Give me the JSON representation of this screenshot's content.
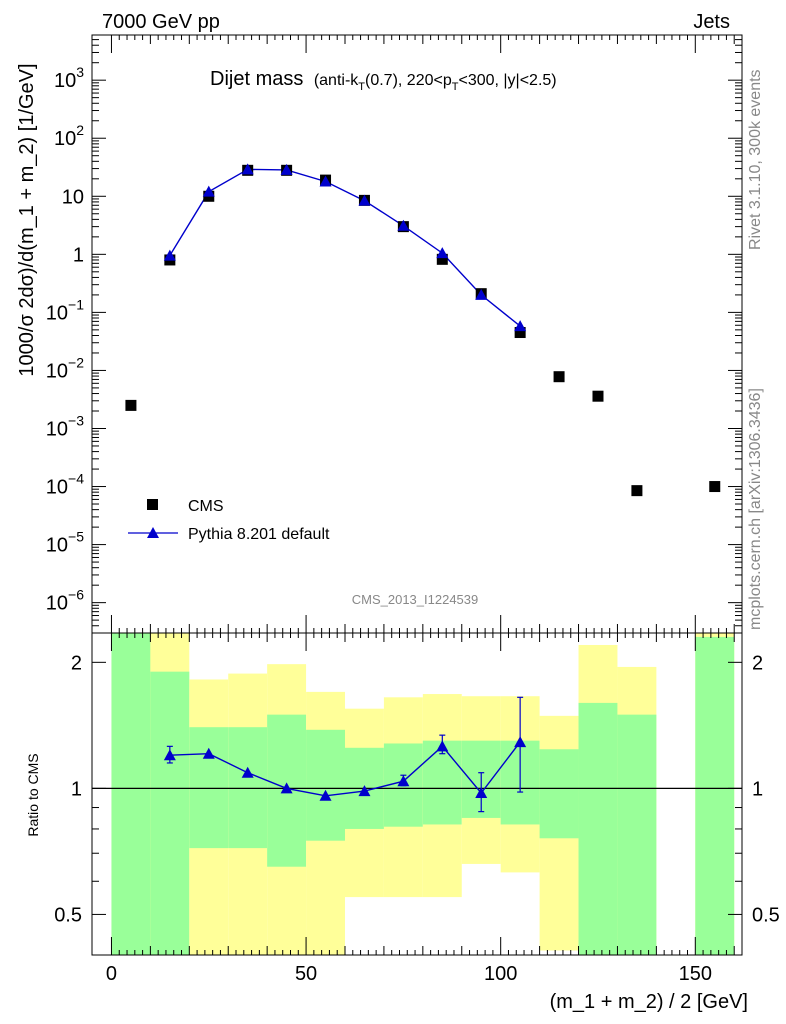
{
  "header": {
    "left": "7000 GeV pp",
    "right": "Jets"
  },
  "side_labels": {
    "rivet": "Rivet 3.1.10,  300k events",
    "mcplots": "mcplots.cern.ch [arXiv:1306.3436]"
  },
  "watermark": "CMS_2013_I1224539",
  "chart_data": [
    {
      "type": "scatter",
      "title": "Dijet mass",
      "subtitle_parts": {
        "open": "(anti-k",
        "sub_T": "T",
        "mid": "(0.7), 220<p",
        "sub_T2": "T",
        "close": "<300, |y|<2.5)"
      },
      "ylabel": "1000/σ 2dσ)/d(m_1 + m_2) [1/GeV]",
      "yscale": "log",
      "ylim": [
        3e-07,
        6000
      ],
      "xlim": [
        -5,
        162
      ],
      "ytick_labels": [
        {
          "v": 1e-06,
          "base": "10",
          "exp": "−6"
        },
        {
          "v": 1e-05,
          "base": "10",
          "exp": "−5"
        },
        {
          "v": 0.0001,
          "base": "10",
          "exp": "−4"
        },
        {
          "v": 0.001,
          "base": "10",
          "exp": "−3"
        },
        {
          "v": 0.01,
          "base": "10",
          "exp": "−2"
        },
        {
          "v": 0.1,
          "base": "10",
          "exp": "−1"
        },
        {
          "v": 1,
          "base": "1",
          "exp": ""
        },
        {
          "v": 10,
          "base": "10",
          "exp": ""
        },
        {
          "v": 100,
          "base": "10",
          "exp": "2"
        },
        {
          "v": 1000,
          "base": "10",
          "exp": "3"
        }
      ],
      "legend": {
        "position": "lower-left",
        "entries": [
          "CMS",
          "Pythia 8.201 default"
        ]
      },
      "series": [
        {
          "name": "CMS",
          "marker": "square",
          "color": "#000000",
          "x": [
            5,
            15,
            25,
            35,
            45,
            55,
            65,
            75,
            85,
            95,
            105,
            115,
            125,
            135,
            155
          ],
          "values": [
            0.0025,
            0.8,
            10.0,
            28.0,
            28.0,
            19.0,
            8.5,
            3.0,
            0.82,
            0.21,
            0.045,
            0.0078,
            0.0036,
            8.5e-05,
            0.0001
          ]
        },
        {
          "name": "Pythia 8.201 default",
          "marker": "triangle",
          "color": "#0000cc",
          "x": [
            15,
            25,
            35,
            45,
            55,
            65,
            75,
            85,
            95,
            105
          ],
          "values": [
            0.95,
            12.0,
            29.0,
            28.5,
            18.0,
            8.4,
            3.1,
            1.05,
            0.2,
            0.058
          ]
        }
      ]
    },
    {
      "type": "scatter",
      "ylabel": "Ratio to CMS",
      "yscale": "log",
      "ylim": [
        0.4,
        2.35
      ],
      "xlim": [
        -5,
        162
      ],
      "xlabel": "(m_1 + m_2) / 2 [GeV]",
      "yticks": [
        0.5,
        1,
        2
      ],
      "ytick_labels": [
        "0.5",
        "1",
        "2"
      ],
      "xticks": [
        0,
        50,
        100,
        150
      ],
      "xtick_labels": [
        "0",
        "50",
        "100",
        "150"
      ],
      "bands": {
        "colors": {
          "inner": "#99ff99",
          "outer": "#ffff99"
        },
        "bins": [
          {
            "x0": 0,
            "x1": 10,
            "g_lo": 0.4,
            "g_hi": 2.35,
            "y_lo": 0.4,
            "y_hi": 2.35
          },
          {
            "x0": 10,
            "x1": 20,
            "g_lo": 0.4,
            "g_hi": 1.9,
            "y_lo": 0.4,
            "y_hi": 2.35
          },
          {
            "x0": 20,
            "x1": 30,
            "g_lo": 0.72,
            "g_hi": 1.4,
            "y_lo": 0.4,
            "y_hi": 1.82
          },
          {
            "x0": 30,
            "x1": 40,
            "g_lo": 0.72,
            "g_hi": 1.4,
            "y_lo": 0.4,
            "y_hi": 1.88
          },
          {
            "x0": 40,
            "x1": 50,
            "g_lo": 0.65,
            "g_hi": 1.5,
            "y_lo": 0.4,
            "y_hi": 1.98
          },
          {
            "x0": 50,
            "x1": 60,
            "g_lo": 0.75,
            "g_hi": 1.38,
            "y_lo": 0.4,
            "y_hi": 1.7
          },
          {
            "x0": 60,
            "x1": 70,
            "g_lo": 0.8,
            "g_hi": 1.25,
            "y_lo": 0.55,
            "y_hi": 1.55
          },
          {
            "x0": 70,
            "x1": 80,
            "g_lo": 0.81,
            "g_hi": 1.28,
            "y_lo": 0.55,
            "y_hi": 1.65
          },
          {
            "x0": 80,
            "x1": 90,
            "g_lo": 0.82,
            "g_hi": 1.3,
            "y_lo": 0.55,
            "y_hi": 1.68
          },
          {
            "x0": 90,
            "x1": 100,
            "g_lo": 0.85,
            "g_hi": 1.3,
            "y_lo": 0.66,
            "y_hi": 1.66
          },
          {
            "x0": 100,
            "x1": 110,
            "g_lo": 0.82,
            "g_hi": 1.3,
            "y_lo": 0.63,
            "y_hi": 1.66
          },
          {
            "x0": 110,
            "x1": 120,
            "g_lo": 0.76,
            "g_hi": 1.24,
            "y_lo": 0.41,
            "y_hi": 1.49
          },
          {
            "x0": 120,
            "x1": 130,
            "g_lo": 0.4,
            "g_hi": 1.6,
            "y_lo": 0.4,
            "y_hi": 2.2
          },
          {
            "x0": 130,
            "x1": 140,
            "g_lo": 0.4,
            "g_hi": 1.5,
            "y_lo": 0.4,
            "y_hi": 1.95
          },
          {
            "x0": 150,
            "x1": 160,
            "g_lo": 0.4,
            "g_hi": 2.3,
            "y_lo": 0.4,
            "y_hi": 2.35
          }
        ]
      },
      "series": [
        {
          "name": "Pythia 8.201 default",
          "marker": "triangle",
          "color": "#0000cc",
          "x": [
            15,
            25,
            35,
            45,
            55,
            65,
            75,
            85,
            95,
            105
          ],
          "values": [
            1.2,
            1.21,
            1.09,
            1.0,
            0.96,
            0.985,
            1.04,
            1.26,
            0.975,
            1.29
          ],
          "err_lo": [
            1.15,
            1.21,
            1.09,
            1.0,
            0.96,
            0.985,
            1.015,
            1.21,
            0.88,
            0.98
          ],
          "err_hi": [
            1.26,
            1.21,
            1.09,
            1.0,
            0.96,
            0.985,
            1.075,
            1.34,
            1.09,
            1.65
          ]
        }
      ]
    }
  ]
}
